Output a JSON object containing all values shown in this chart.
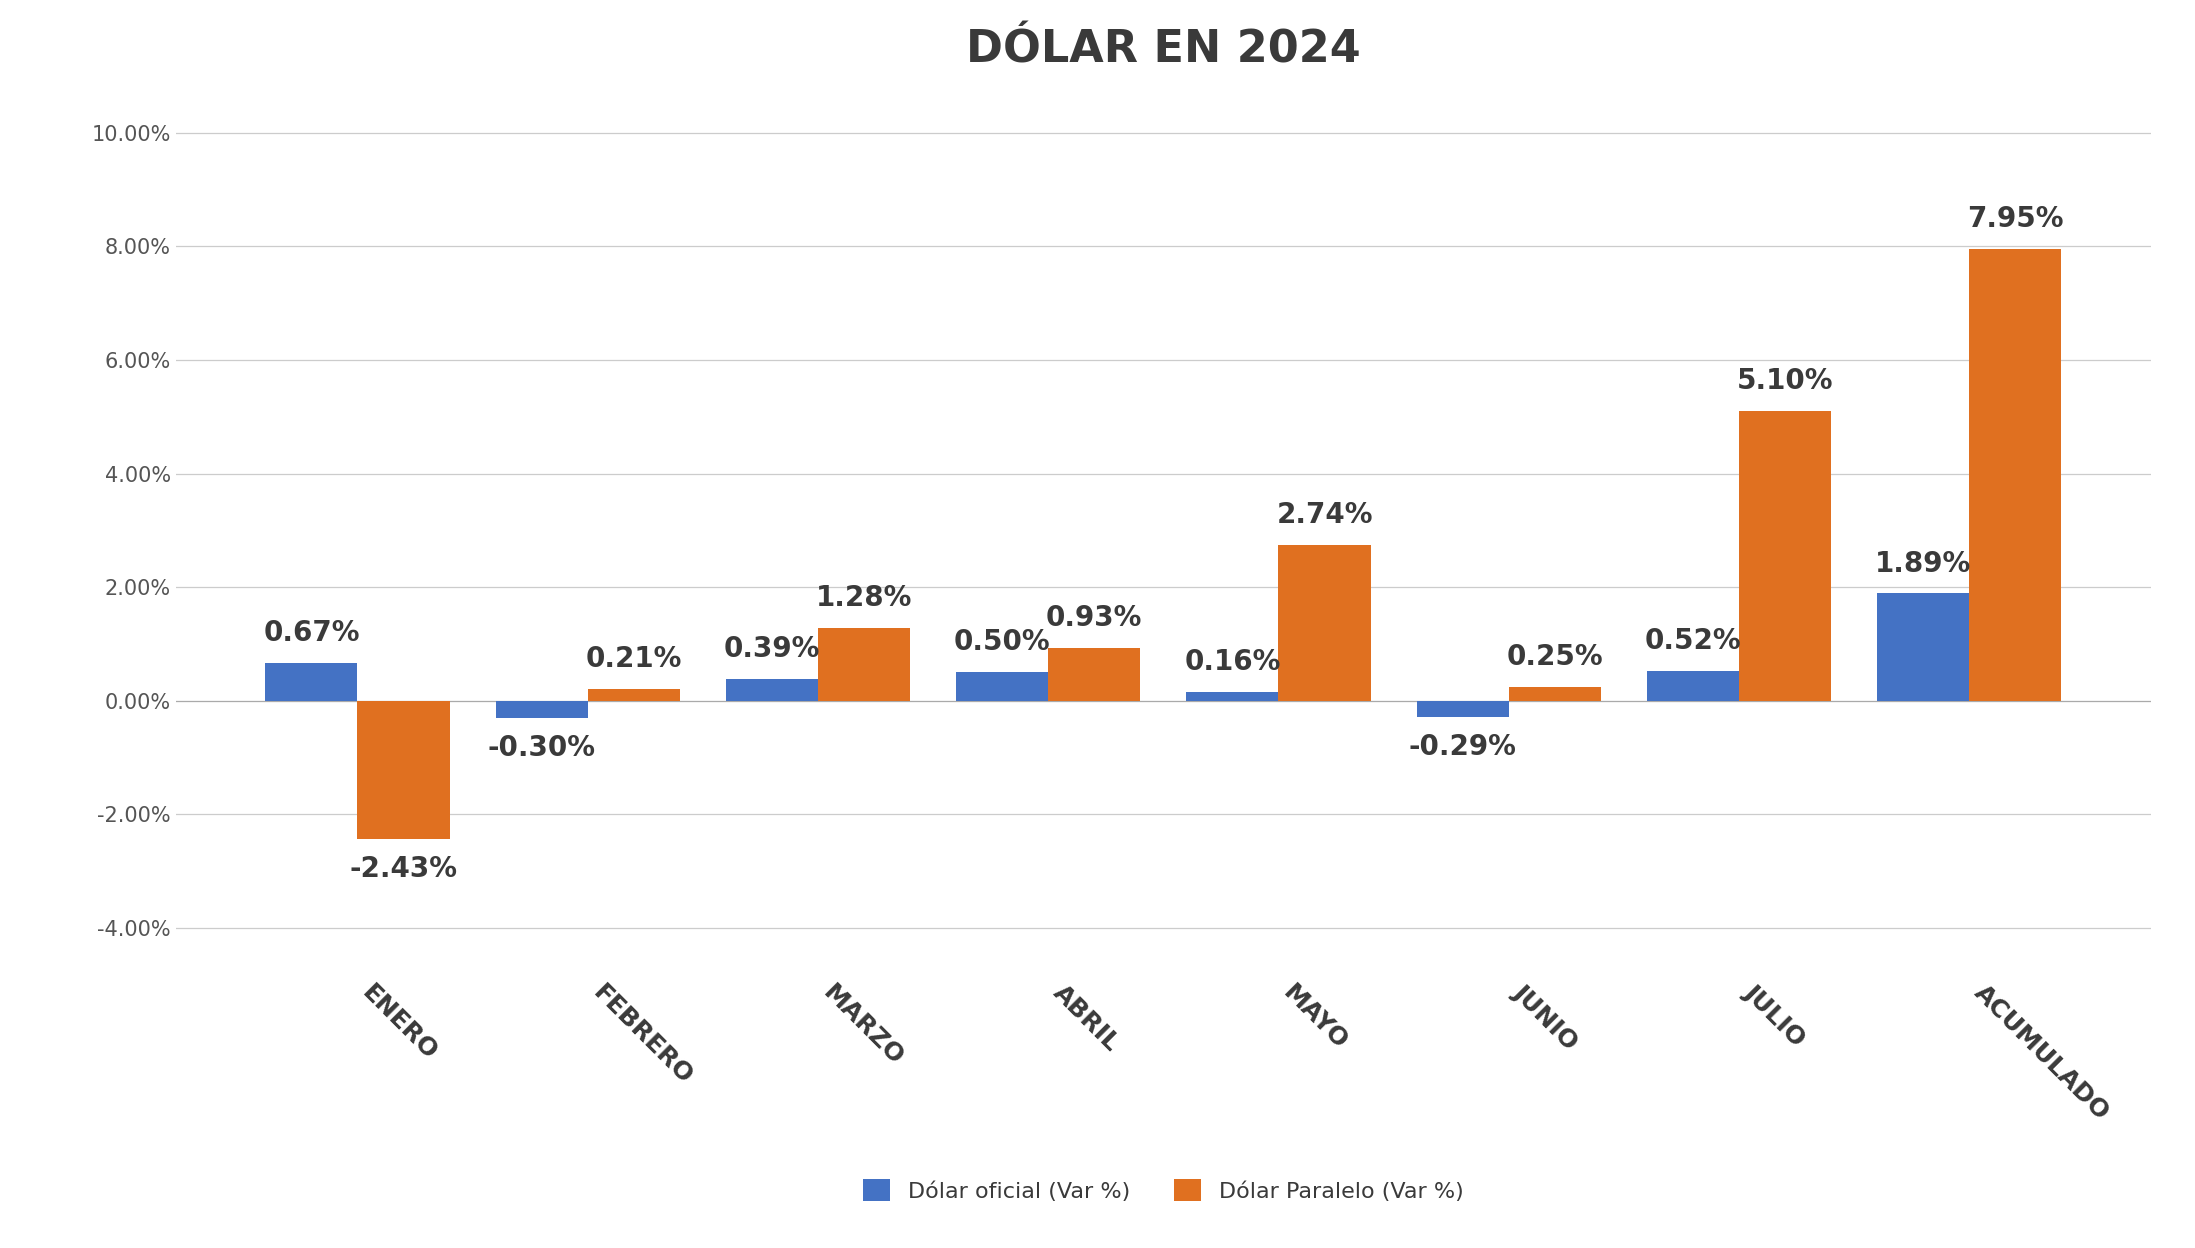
{
  "title": "DÓLAR EN 2024",
  "categories": [
    "ENERO",
    "FEBRERO",
    "MARZO",
    "ABRIL",
    "MAYO",
    "JUNIO",
    "JULIO",
    "ACUMULADO"
  ],
  "oficial": [
    0.0067,
    -0.003,
    0.0039,
    0.005,
    0.0016,
    -0.0029,
    0.0052,
    0.0189
  ],
  "paralelo": [
    -0.0243,
    0.0021,
    0.0128,
    0.0093,
    0.0274,
    0.0025,
    0.051,
    0.0795
  ],
  "oficial_labels": [
    "0.67%",
    "-0.30%",
    "0.39%",
    "0.50%",
    "0.16%",
    "-0.29%",
    "0.52%",
    "1.89%"
  ],
  "paralelo_labels": [
    "-2.43%",
    "0.21%",
    "1.28%",
    "0.93%",
    "2.74%",
    "0.25%",
    "5.10%",
    "7.95%"
  ],
  "color_oficial": "#4472c4",
  "color_paralelo": "#e07020",
  "ylim_min": -0.048,
  "ylim_max": 0.108,
  "yticks": [
    -0.04,
    -0.02,
    0.0,
    0.02,
    0.04,
    0.06,
    0.08,
    0.1
  ],
  "ytick_labels": [
    "-4.00%",
    "-2.00%",
    "0.00%",
    "2.00%",
    "4.00%",
    "6.00%",
    "8.00%",
    "10.00%"
  ],
  "legend_oficial": "Dólar oficial (Var %)",
  "legend_paralelo": "Dólar Paralelo (Var %)",
  "background_color": "#ffffff",
  "title_fontsize": 32,
  "bar_label_fontsize": 20,
  "tick_fontsize": 15,
  "xtick_fontsize": 18,
  "legend_fontsize": 16,
  "bar_width": 0.4,
  "label_color": "#3a3a3a",
  "tick_color": "#555555"
}
